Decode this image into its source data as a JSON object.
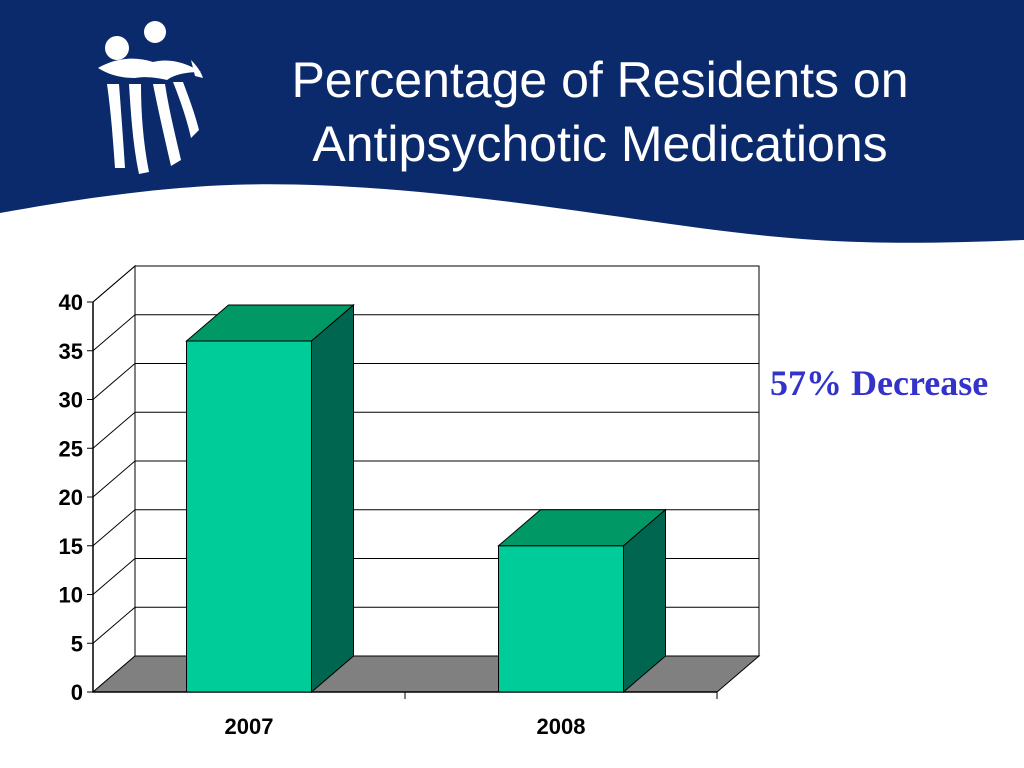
{
  "header": {
    "title_line1": "Percentage of Residents on",
    "title_line2": "Antipsychotic Medications",
    "background_color": "#0b2a6b",
    "logo_icon": "people-figures-logo-icon"
  },
  "annotation": {
    "text": "57% Decrease",
    "color": "#3333cc"
  },
  "chart_data": {
    "type": "bar",
    "style": "3d",
    "categories": [
      "2007",
      "2008"
    ],
    "series": [
      {
        "values": [
          36,
          15
        ]
      }
    ],
    "title": "",
    "xlabel": "",
    "ylabel": "",
    "ylim": [
      0,
      40
    ],
    "yticks": [
      0,
      5,
      10,
      15,
      20,
      25,
      30,
      35,
      40
    ],
    "grid": true,
    "legend": "none",
    "colors": {
      "bar_front": "#00cc99",
      "bar_top": "#009966",
      "bar_side": "#006650",
      "floor": "#808080"
    }
  }
}
